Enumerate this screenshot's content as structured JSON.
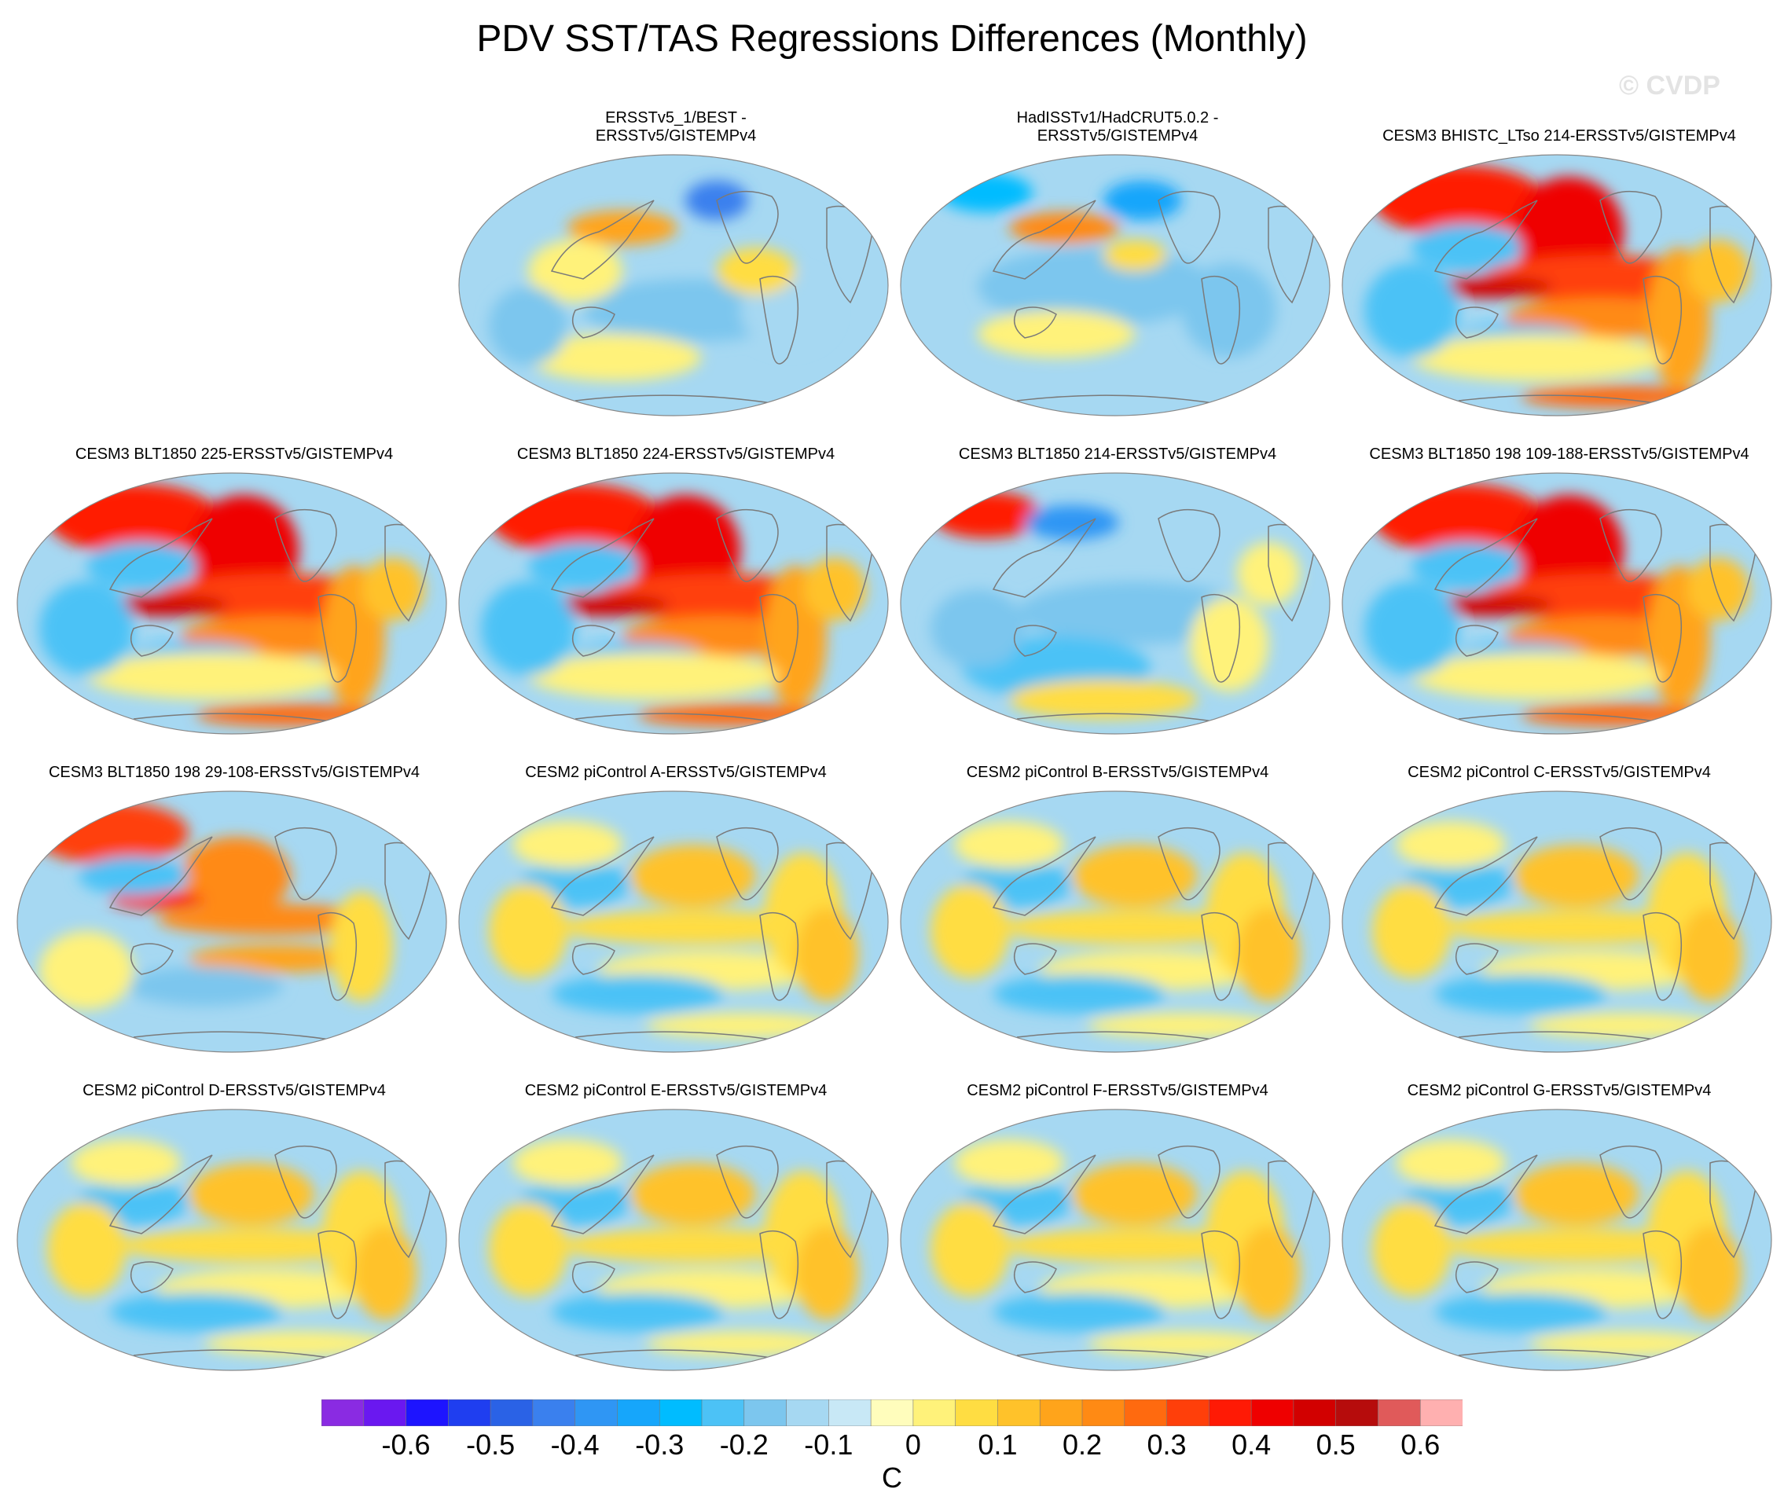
{
  "title": "PDV SST/TAS Regressions Differences (Monthly)",
  "watermark": "© CVDP",
  "colorbar": {
    "unit": "C",
    "labels": [
      "-0.6",
      "-0.5",
      "-0.4",
      "-0.3",
      "-0.2",
      "-0.1",
      "0",
      "0.1",
      "0.2",
      "0.3",
      "0.4",
      "0.5",
      "0.6"
    ],
    "colors": [
      "#8a2be2",
      "#6a18f0",
      "#1d14ff",
      "#1f3ef0",
      "#2a62e6",
      "#3a80ee",
      "#2f96f4",
      "#16a6fb",
      "#00bcff",
      "#4cc2f6",
      "#7cc6ee",
      "#a6d8f2",
      "#c8e8f6",
      "#fffdbc",
      "#fff27a",
      "#ffdd42",
      "#ffc22a",
      "#ffa41b",
      "#ff8a14",
      "#ff6a0f",
      "#ff3f0a",
      "#ff1a05",
      "#ef0000",
      "#d20000",
      "#b60c0c",
      "#e05a5a",
      "#ffb0b0"
    ]
  },
  "panels": [
    {
      "title": "ERSSTv5_1/BEST -\nERSSTv5/GISTEMPv4",
      "pattern": "obs1"
    },
    {
      "title": "HadISSTv1/HadCRUT5.0.2 -\nERSSTv5/GISTEMPv4",
      "pattern": "obs2"
    },
    {
      "title": "CESM3 BHISTC_LTso 214-ERSSTv5/GISTEMPv4",
      "pattern": "strong"
    },
    {
      "title": "CESM3 BLT1850 225-ERSSTv5/GISTEMPv4",
      "pattern": "strong"
    },
    {
      "title": "CESM3 BLT1850 224-ERSSTv5/GISTEMPv4",
      "pattern": "strong"
    },
    {
      "title": "CESM3 BLT1850 214-ERSSTv5/GISTEMPv4",
      "pattern": "cool"
    },
    {
      "title": "CESM3 BLT1850 198 109-188-ERSSTv5/GISTEMPv4",
      "pattern": "strong"
    },
    {
      "title": "CESM3 BLT1850 198 29-108-ERSSTv5/GISTEMPv4",
      "pattern": "medium"
    },
    {
      "title": "CESM2 piControl A-ERSSTv5/GISTEMPv4",
      "pattern": "mild"
    },
    {
      "title": "CESM2 piControl B-ERSSTv5/GISTEMPv4",
      "pattern": "mild"
    },
    {
      "title": "CESM2 piControl C-ERSSTv5/GISTEMPv4",
      "pattern": "mild"
    },
    {
      "title": "CESM2 piControl D-ERSSTv5/GISTEMPv4",
      "pattern": "mild"
    },
    {
      "title": "CESM2 piControl E-ERSSTv5/GISTEMPv4",
      "pattern": "mild"
    },
    {
      "title": "CESM2 piControl F-ERSSTv5/GISTEMPv4",
      "pattern": "mild"
    },
    {
      "title": "CESM2 piControl G-ERSSTv5/GISTEMPv4",
      "pattern": "mild"
    }
  ]
}
